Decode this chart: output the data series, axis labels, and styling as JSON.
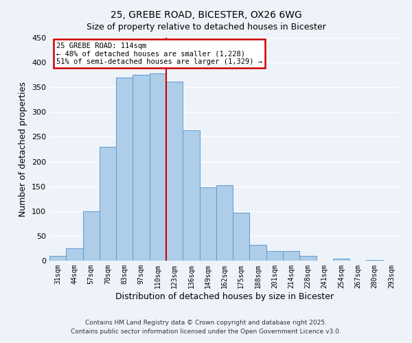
{
  "title": "25, GREBE ROAD, BICESTER, OX26 6WG",
  "subtitle": "Size of property relative to detached houses in Bicester",
  "xlabel": "Distribution of detached houses by size in Bicester",
  "ylabel": "Number of detached properties",
  "bar_labels": [
    "31sqm",
    "44sqm",
    "57sqm",
    "70sqm",
    "83sqm",
    "97sqm",
    "110sqm",
    "123sqm",
    "136sqm",
    "149sqm",
    "162sqm",
    "175sqm",
    "188sqm",
    "201sqm",
    "214sqm",
    "228sqm",
    "241sqm",
    "254sqm",
    "267sqm",
    "280sqm",
    "293sqm"
  ],
  "bar_heights": [
    10,
    25,
    100,
    230,
    370,
    375,
    378,
    362,
    263,
    148,
    153,
    97,
    32,
    19,
    20,
    10,
    0,
    4,
    0,
    2,
    0
  ],
  "bar_color": "#aecde8",
  "bar_edge_color": "#5b9bd5",
  "background_color": "#eef2f9",
  "grid_color": "#ffffff",
  "ylim": [
    0,
    450
  ],
  "yticks": [
    0,
    50,
    100,
    150,
    200,
    250,
    300,
    350,
    400,
    450
  ],
  "vline_color": "#cc0000",
  "annotation_title": "25 GREBE ROAD: 114sqm",
  "annotation_line1": "← 48% of detached houses are smaller (1,228)",
  "annotation_line2": "51% of semi-detached houses are larger (1,329) →",
  "annotation_box_color": "#ffffff",
  "annotation_box_edge": "#cc0000",
  "footnote1": "Contains HM Land Registry data © Crown copyright and database right 2025.",
  "footnote2": "Contains public sector information licensed under the Open Government Licence v3.0."
}
